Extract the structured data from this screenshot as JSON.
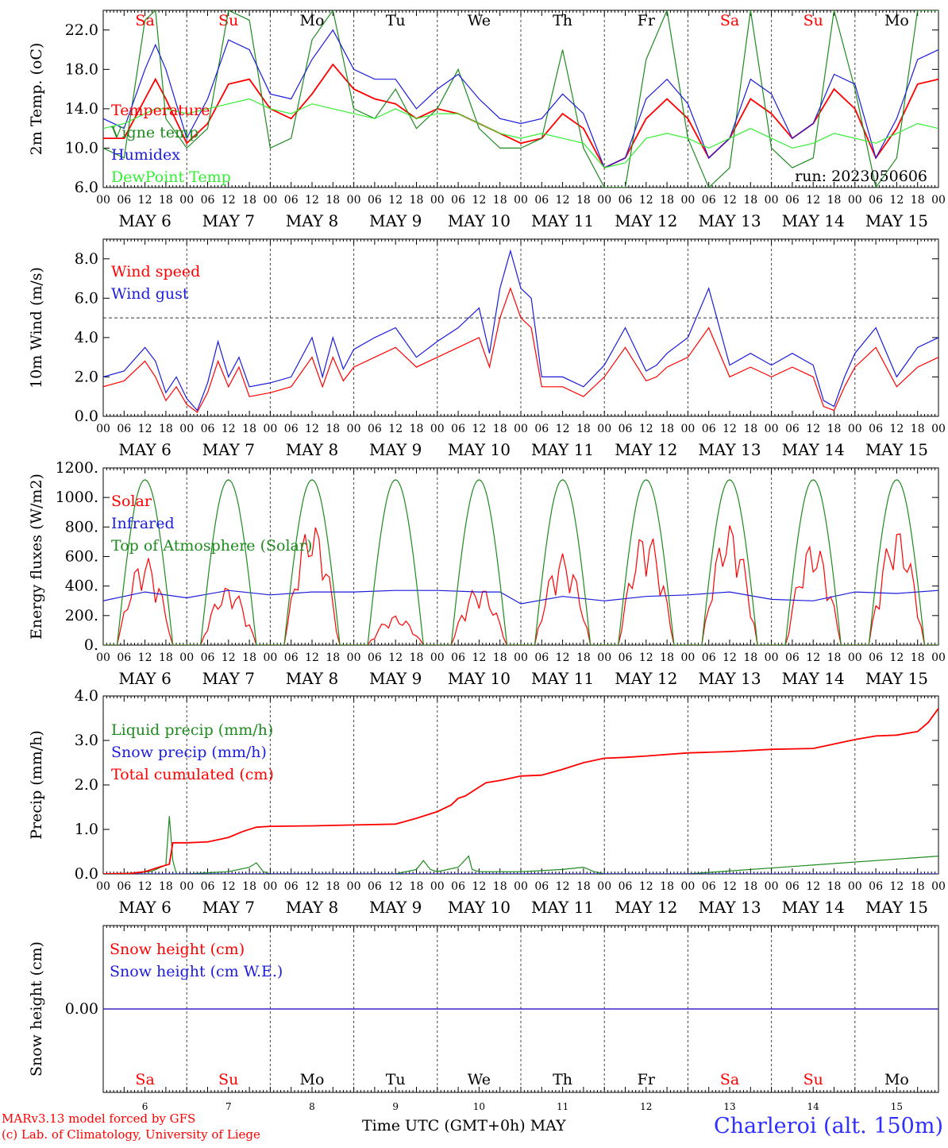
{
  "colors": {
    "temperature": "#ff0000",
    "vigne": "#1f8a1f",
    "humidex": "#1c1cdc",
    "dewpoint": "#33ee33",
    "weekend": "#ff0000",
    "weekday": "#000000",
    "station": "#2f2fff"
  },
  "days": [
    {
      "date": "6",
      "month": "MAY",
      "weekday": "Sa",
      "weekend": true
    },
    {
      "date": "7",
      "month": "MAY",
      "weekday": "Su",
      "weekend": true
    },
    {
      "date": "8",
      "month": "MAY",
      "weekday": "Mo",
      "weekend": false
    },
    {
      "date": "9",
      "month": "MAY",
      "weekday": "Tu",
      "weekend": false
    },
    {
      "date": "10",
      "month": "MAY",
      "weekday": "We",
      "weekend": false
    },
    {
      "date": "11",
      "month": "MAY",
      "weekday": "Th",
      "weekend": false
    },
    {
      "date": "12",
      "month": "MAY",
      "weekday": "Fr",
      "weekend": false
    },
    {
      "date": "13",
      "month": "MAY",
      "weekday": "Sa",
      "weekend": true
    },
    {
      "date": "14",
      "month": "MAY",
      "weekday": "Su",
      "weekend": true
    },
    {
      "date": "15",
      "month": "MAY",
      "weekday": "Mo",
      "weekend": false
    }
  ],
  "hour_ticks": [
    "00",
    "06",
    "12",
    "18"
  ],
  "final_tick": "00",
  "footer": {
    "model": "MARv3.13 model forced by GFS",
    "credit": "(c) Lab. of Climatology, University of Liege",
    "time_axis": "Time UTC (GMT+0h) MAY",
    "station": "Charleroi (alt. 150m)"
  },
  "chart_data": [
    {
      "type": "line",
      "ylabel": "2m Temp. (oC)",
      "ylim": [
        6,
        24
      ],
      "yticks": [
        "6.0",
        "10.0",
        "14.0",
        "18.0",
        "22.0"
      ],
      "annotation": "run: 2023050606",
      "x_unit": "hours since 2023-05-06 00 UTC",
      "series": [
        {
          "name": "Temperature",
          "color": "#ff0000",
          "x": [
            0,
            6,
            12,
            15,
            18,
            24,
            30,
            36,
            42,
            48,
            54,
            60,
            66,
            72,
            78,
            84,
            90,
            96,
            102,
            108,
            114,
            120,
            126,
            132,
            138,
            144,
            150,
            156,
            162,
            168,
            174,
            180,
            186,
            192,
            198,
            204,
            210,
            216,
            222,
            228,
            234,
            240
          ],
          "values": [
            11,
            11,
            15,
            17,
            15,
            10.5,
            12.5,
            16.5,
            17,
            14,
            13,
            15.5,
            18.5,
            16,
            15,
            14.5,
            13,
            14,
            13.5,
            12.5,
            11.5,
            10.5,
            11,
            13.5,
            12,
            8,
            9,
            13,
            15,
            13,
            9,
            11,
            15,
            13.5,
            11,
            12.5,
            16,
            14,
            9,
            12,
            16.5,
            17
          ]
        },
        {
          "name": "Vigne temp",
          "color": "#1f8a1f",
          "x": [
            0,
            6,
            12,
            15,
            18,
            24,
            30,
            36,
            42,
            48,
            54,
            60,
            66,
            72,
            78,
            84,
            90,
            96,
            102,
            108,
            114,
            120,
            126,
            132,
            138,
            144,
            150,
            156,
            162,
            168,
            174,
            180,
            186,
            192,
            198,
            204,
            210,
            216,
            222,
            228,
            234,
            240
          ],
          "values": [
            10,
            9,
            23,
            24,
            13,
            10,
            12,
            24,
            23,
            10,
            11,
            21,
            24,
            14,
            13,
            16,
            12,
            14,
            18,
            12,
            10,
            10,
            11,
            20,
            10,
            6,
            6,
            19,
            24,
            11,
            6,
            8,
            24,
            10,
            8,
            9,
            24,
            16,
            6,
            9,
            24,
            24
          ]
        },
        {
          "name": "Humidex",
          "color": "#1c1cdc",
          "x": [
            0,
            6,
            12,
            15,
            18,
            24,
            30,
            36,
            42,
            48,
            54,
            60,
            66,
            72,
            78,
            84,
            90,
            96,
            102,
            108,
            114,
            120,
            126,
            132,
            138,
            144,
            150,
            156,
            162,
            168,
            174,
            180,
            186,
            192,
            198,
            204,
            210,
            216,
            222,
            228,
            234,
            240
          ],
          "values": [
            13,
            12,
            18,
            20.5,
            18,
            11,
            15,
            21,
            20,
            15.5,
            15,
            19,
            22,
            18,
            17,
            17,
            14,
            16,
            17.5,
            15,
            13,
            12.5,
            13,
            15.5,
            13.5,
            8,
            9,
            15,
            17,
            14.5,
            9,
            11,
            17,
            15.5,
            11,
            12.5,
            17.5,
            16.5,
            9,
            13,
            19,
            20
          ]
        },
        {
          "name": "DewPoint Temp",
          "color": "#33ee33",
          "x": [
            0,
            6,
            12,
            15,
            18,
            24,
            30,
            36,
            42,
            48,
            54,
            60,
            66,
            72,
            78,
            84,
            90,
            96,
            102,
            108,
            114,
            120,
            126,
            132,
            138,
            144,
            150,
            156,
            162,
            168,
            174,
            180,
            186,
            192,
            198,
            204,
            210,
            216,
            222,
            228,
            234,
            240
          ],
          "values": [
            12,
            12.5,
            13.5,
            14,
            14,
            13.5,
            14,
            14.5,
            15,
            14,
            13.5,
            14.5,
            14,
            13.5,
            13,
            14,
            13,
            13.5,
            13.5,
            12.5,
            11.5,
            11,
            11.5,
            11,
            10.5,
            8,
            8.5,
            11,
            11.5,
            11,
            10,
            11,
            12,
            11,
            10,
            10.5,
            11.5,
            11,
            10.5,
            11.5,
            12.5,
            12
          ]
        }
      ]
    },
    {
      "type": "line",
      "ylabel": "10m Wind (m/s)",
      "ylim": [
        0,
        9
      ],
      "yticks": [
        "0.0",
        "2.0",
        "4.0",
        "6.0",
        "8.0"
      ],
      "reference_line": 5,
      "x_unit": "hours since 2023-05-06 00 UTC",
      "series": [
        {
          "name": "Wind speed",
          "color": "#ff0000",
          "x": [
            0,
            6,
            12,
            15,
            18,
            21,
            24,
            27,
            30,
            33,
            36,
            39,
            42,
            48,
            54,
            60,
            63,
            66,
            69,
            72,
            78,
            84,
            90,
            96,
            102,
            108,
            111,
            114,
            117,
            120,
            123,
            126,
            132,
            138,
            144,
            150,
            156,
            159,
            162,
            168,
            174,
            180,
            186,
            192,
            198,
            204,
            207,
            210,
            213,
            216,
            222,
            228,
            234,
            240
          ],
          "values": [
            1.5,
            1.8,
            2.8,
            2,
            0.8,
            1.5,
            0.6,
            0.2,
            1.2,
            2.8,
            1.5,
            2.5,
            1,
            1.2,
            1.5,
            3,
            1.5,
            3,
            1.8,
            2.5,
            3,
            3.5,
            2.5,
            3,
            3.5,
            4,
            2.5,
            5,
            6.5,
            5,
            4.5,
            1.5,
            1.5,
            1,
            2,
            3.5,
            1.8,
            2,
            2.5,
            3,
            4.5,
            2,
            2.5,
            2,
            2.5,
            2,
            0.5,
            0.3,
            1.5,
            2.5,
            3.5,
            1.5,
            2.5,
            3
          ]
        },
        {
          "name": "Wind gust",
          "color": "#1c1cdc",
          "x": [
            0,
            6,
            12,
            15,
            18,
            21,
            24,
            27,
            30,
            33,
            36,
            39,
            42,
            48,
            54,
            60,
            63,
            66,
            69,
            72,
            78,
            84,
            90,
            96,
            102,
            108,
            111,
            114,
            117,
            120,
            123,
            126,
            132,
            138,
            144,
            150,
            156,
            159,
            162,
            168,
            174,
            180,
            186,
            192,
            198,
            204,
            207,
            210,
            213,
            216,
            222,
            228,
            234,
            240
          ],
          "values": [
            2,
            2.3,
            3.5,
            2.8,
            1.2,
            2,
            0.9,
            0.3,
            1.7,
            3.8,
            2,
            3,
            1.5,
            1.7,
            2,
            4,
            2,
            4,
            2.4,
            3.4,
            4,
            4.5,
            3,
            3.8,
            4.5,
            5.5,
            3.2,
            6.5,
            8.4,
            6.5,
            6,
            2,
            2,
            1.5,
            2.6,
            4.5,
            2.3,
            2.6,
            3.2,
            4,
            6.5,
            2.6,
            3.2,
            2.6,
            3.2,
            2.6,
            0.8,
            0.5,
            2,
            3.2,
            4.5,
            2,
            3.5,
            4
          ]
        }
      ]
    },
    {
      "type": "line",
      "ylabel": "Energy fluxes (W/m2)",
      "ylim": [
        0,
        1200
      ],
      "yticks": [
        "0.",
        "200.",
        "400.",
        "600.",
        "800.",
        "1000.",
        "1200."
      ],
      "x_unit": "hours since 2023-05-06 00 UTC",
      "series": [
        {
          "name": "Solar",
          "color": "#ff0000",
          "peaks": [
            600,
            400,
            830,
            200,
            400,
            620,
            780,
            820,
            700,
            790
          ]
        },
        {
          "name": "Infrared",
          "color": "#1c1cdc",
          "x": [
            0,
            12,
            24,
            36,
            48,
            60,
            72,
            84,
            96,
            108,
            114,
            120,
            132,
            144,
            156,
            168,
            180,
            192,
            204,
            216,
            228,
            240
          ],
          "values": [
            300,
            360,
            320,
            370,
            340,
            360,
            360,
            370,
            370,
            360,
            360,
            280,
            330,
            300,
            330,
            340,
            360,
            310,
            300,
            360,
            350,
            370
          ]
        },
        {
          "name": "Top of Atmosphere (Solar)",
          "color": "#1f8a1f",
          "peak": 1120
        }
      ]
    },
    {
      "type": "line",
      "ylabel": "Precip (mm/h)",
      "ylim": [
        0,
        4
      ],
      "yticks": [
        "0.0",
        "1.0",
        "2.0",
        "3.0",
        "4.0"
      ],
      "x_unit": "hours since 2023-05-06 00 UTC",
      "series": [
        {
          "name": "Liquid precip (mm/h)",
          "color": "#1f8a1f",
          "x": [
            0,
            10,
            14,
            18,
            19,
            20,
            21,
            24,
            36,
            42,
            44,
            46,
            48,
            72,
            84,
            90,
            92,
            94,
            96,
            102,
            105,
            106,
            108,
            120,
            132,
            138,
            141,
            144,
            168,
            240
          ],
          "values": [
            0,
            0.02,
            0.06,
            0.2,
            1.3,
            0.3,
            0,
            0,
            0.05,
            0.15,
            0.25,
            0.05,
            0,
            0,
            0,
            0.1,
            0.3,
            0.1,
            0.05,
            0.15,
            0.4,
            0.1,
            0.05,
            0.05,
            0.1,
            0.15,
            0.05,
            0,
            0,
            0.4
          ]
        },
        {
          "name": "Snow precip (mm/h)",
          "color": "#1c1cdc",
          "x": [
            0,
            240
          ],
          "values": [
            0,
            0
          ]
        },
        {
          "name": "Total cumulated (cm)",
          "color": "#ff0000",
          "x": [
            0,
            8,
            12,
            16,
            19,
            20,
            24,
            30,
            36,
            40,
            44,
            48,
            60,
            72,
            84,
            90,
            96,
            100,
            102,
            104,
            108,
            110,
            114,
            120,
            126,
            132,
            138,
            144,
            150,
            156,
            168,
            180,
            192,
            204,
            210,
            216,
            222,
            228,
            234,
            237,
            240
          ],
          "values": [
            0,
            0.01,
            0.05,
            0.15,
            0.22,
            0.7,
            0.7,
            0.72,
            0.82,
            0.95,
            1.05,
            1.07,
            1.08,
            1.1,
            1.12,
            1.25,
            1.4,
            1.55,
            1.7,
            1.75,
            1.95,
            2.05,
            2.1,
            2.2,
            2.22,
            2.35,
            2.5,
            2.6,
            2.62,
            2.65,
            2.72,
            2.75,
            2.8,
            2.82,
            2.92,
            3.02,
            3.1,
            3.12,
            3.2,
            3.4,
            3.72
          ]
        }
      ]
    },
    {
      "type": "line",
      "ylabel": "Snow height (cm)",
      "ylim": [
        -1,
        1
      ],
      "yticks": [
        "0.00"
      ],
      "x_unit": "hours since 2023-05-06 00 UTC",
      "series": [
        {
          "name": "Snow height (cm)",
          "color": "#ff0000",
          "x": [
            0,
            240
          ],
          "values": [
            0,
            0
          ]
        },
        {
          "name": "Snow height (cm W.E.)",
          "color": "#1c1cdc",
          "x": [
            0,
            240
          ],
          "values": [
            0,
            0
          ]
        }
      ]
    }
  ]
}
